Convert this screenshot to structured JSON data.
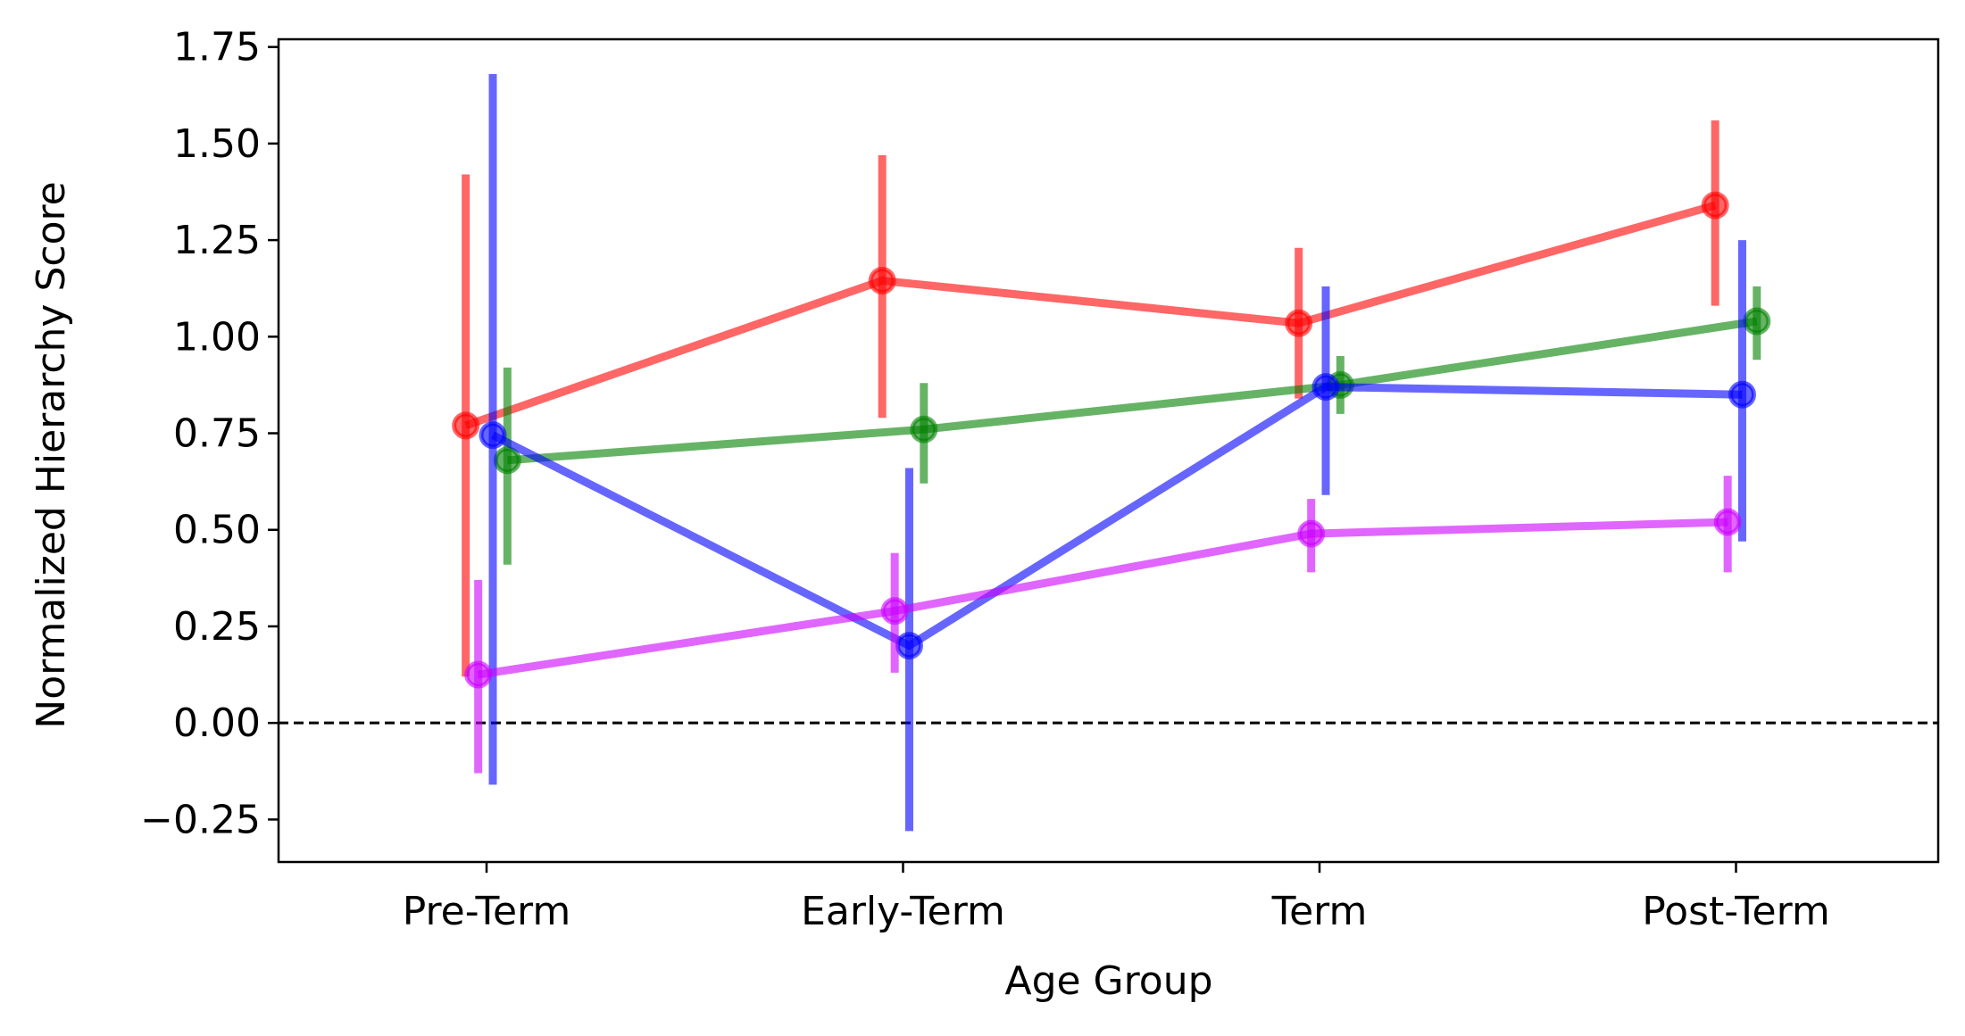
{
  "chart_data": {
    "type": "line",
    "title": "",
    "xlabel": "Age Group",
    "ylabel": "Normalized Hierarchy Score",
    "categories": [
      "Pre-Term",
      "Early-Term",
      "Term",
      "Post-Term"
    ],
    "ylim": [
      -0.36,
      1.77
    ],
    "yticks": [
      -0.25,
      0.0,
      0.25,
      0.5,
      0.75,
      1.0,
      1.25,
      1.5,
      1.75
    ],
    "ytick_labels": [
      "−0.25",
      "0.00",
      "0.25",
      "0.50",
      "0.75",
      "1.00",
      "1.25",
      "1.50",
      "1.75"
    ],
    "grid": false,
    "legend": "none",
    "reference_line": {
      "y": 0.0,
      "style": "dashed",
      "color": "#000000"
    },
    "series": [
      {
        "color": "#ff0000",
        "dodge": -0.05,
        "values": [
          0.77,
          1.145,
          1.035,
          1.34
        ],
        "err_low": [
          0.12,
          0.79,
          0.84,
          1.08
        ],
        "err_high": [
          1.42,
          1.47,
          1.23,
          1.56
        ]
      },
      {
        "color": "#008000",
        "dodge": 0.05,
        "values": [
          0.68,
          0.76,
          0.875,
          1.04
        ],
        "err_low": [
          0.41,
          0.62,
          0.8,
          0.94
        ],
        "err_high": [
          0.92,
          0.88,
          0.95,
          1.13
        ]
      },
      {
        "color": "#0000ff",
        "dodge": 0.015,
        "values": [
          0.745,
          0.2,
          0.87,
          0.85
        ],
        "err_low": [
          -0.16,
          -0.28,
          0.59,
          0.47
        ],
        "err_high": [
          1.68,
          0.66,
          1.13,
          1.25
        ]
      },
      {
        "color": "#cc00ff",
        "dodge": -0.02,
        "values": [
          0.125,
          0.29,
          0.49,
          0.52
        ],
        "err_low": [
          -0.13,
          0.13,
          0.39,
          0.39
        ],
        "err_high": [
          0.37,
          0.44,
          0.58,
          0.64
        ]
      }
    ]
  }
}
